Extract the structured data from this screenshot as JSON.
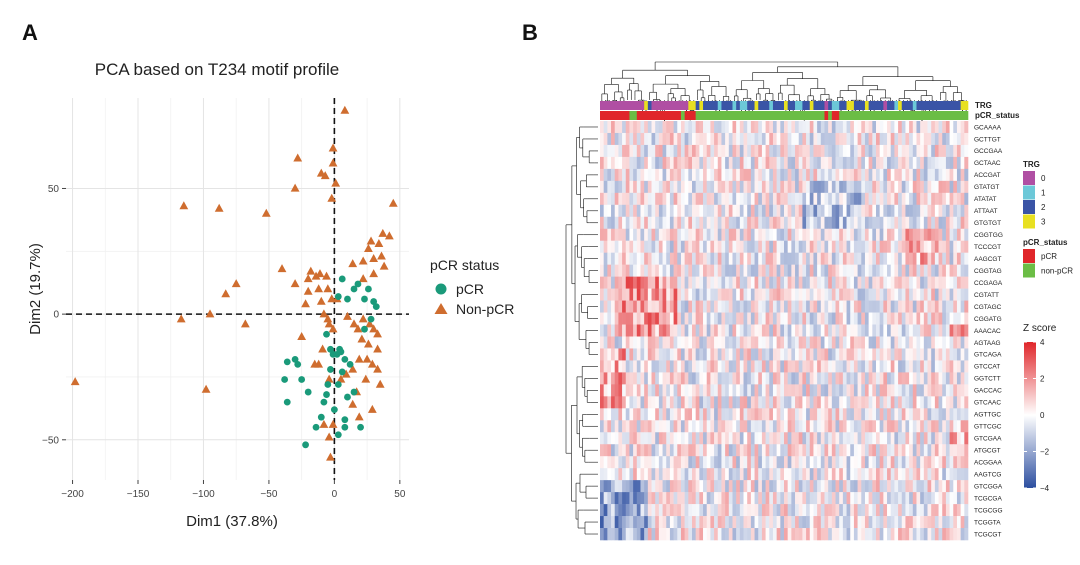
{
  "panels": {
    "a_label": "A",
    "b_label": "B"
  },
  "chart_data": [
    {
      "type": "scatter",
      "title": "PCA based on T234 motif profile",
      "xlabel": "Dim1 (37.8%)",
      "ylabel": "Dim2 (19.7%)",
      "xlim": [
        -205,
        57
      ],
      "ylim": [
        -66,
        86
      ],
      "x_ticks": [
        -200,
        -150,
        -100,
        -50,
        0,
        50
      ],
      "y_ticks": [
        -50,
        0,
        50
      ],
      "x_tick_labels": [
        "−200",
        "−150",
        "−100",
        "−50",
        "0",
        "50"
      ],
      "y_tick_labels": [
        "−50",
        "0",
        "50"
      ],
      "reference_lines": {
        "x": 0,
        "y": 0,
        "style": "dashed"
      },
      "legend": {
        "title": "pCR status",
        "position": "right"
      },
      "colors": {
        "pCR": "#1a9a7a",
        "Non-pCR": "#cf6d2f"
      },
      "series": [
        {
          "name": "pCR",
          "marker": "circle",
          "points": [
            [
              3,
              7
            ],
            [
              6,
              14
            ],
            [
              10,
              6
            ],
            [
              15,
              10
            ],
            [
              18,
              12
            ],
            [
              23,
              6
            ],
            [
              26,
              10
            ],
            [
              30,
              5
            ],
            [
              32,
              3
            ],
            [
              28,
              -2
            ],
            [
              23,
              -6
            ],
            [
              -6,
              -8
            ],
            [
              -3,
              -14
            ],
            [
              2,
              -16
            ],
            [
              5,
              -15
            ],
            [
              8,
              -18
            ],
            [
              12,
              -20
            ],
            [
              6,
              -23
            ],
            [
              3,
              -28
            ],
            [
              -3,
              -22
            ],
            [
              -5,
              -28
            ],
            [
              -6,
              -32
            ],
            [
              -20,
              -31
            ],
            [
              -25,
              -26
            ],
            [
              -30,
              -18
            ],
            [
              -28,
              -20
            ],
            [
              -36,
              -19
            ],
            [
              -38,
              -26
            ],
            [
              -36,
              -35
            ],
            [
              0,
              -38
            ],
            [
              3,
              -48
            ],
            [
              8,
              -42
            ],
            [
              15,
              -31
            ],
            [
              10,
              -33
            ],
            [
              -8,
              -35
            ],
            [
              -10,
              -41
            ],
            [
              -14,
              -45
            ],
            [
              -22,
              -52
            ],
            [
              8,
              -45
            ],
            [
              20,
              -45
            ],
            [
              -1,
              -16
            ],
            [
              4,
              -14
            ]
          ]
        },
        {
          "name": "Non-pCR",
          "marker": "triangle",
          "points": [
            [
              8,
              81
            ],
            [
              -1,
              66
            ],
            [
              -28,
              62
            ],
            [
              -1,
              60
            ],
            [
              -10,
              56
            ],
            [
              -7,
              55
            ],
            [
              1,
              52
            ],
            [
              -30,
              50
            ],
            [
              -115,
              43
            ],
            [
              -88,
              42
            ],
            [
              -52,
              40
            ],
            [
              -2,
              46
            ],
            [
              45,
              44
            ],
            [
              37,
              32
            ],
            [
              42,
              31
            ],
            [
              28,
              29
            ],
            [
              34,
              28
            ],
            [
              26,
              26
            ],
            [
              36,
              23
            ],
            [
              22,
              21
            ],
            [
              30,
              22
            ],
            [
              38,
              19
            ],
            [
              30,
              16
            ],
            [
              22,
              14
            ],
            [
              14,
              20
            ],
            [
              -40,
              18
            ],
            [
              -20,
              14
            ],
            [
              -18,
              17
            ],
            [
              -14,
              15
            ],
            [
              -11,
              16
            ],
            [
              -30,
              12
            ],
            [
              -12,
              10
            ],
            [
              -5,
              10
            ],
            [
              -6,
              15
            ],
            [
              -20,
              9
            ],
            [
              -75,
              12
            ],
            [
              -83,
              8
            ],
            [
              -95,
              0
            ],
            [
              -117,
              -2
            ],
            [
              -68,
              -4
            ],
            [
              -2,
              6
            ],
            [
              2,
              6
            ],
            [
              -10,
              5
            ],
            [
              -22,
              4
            ],
            [
              -8,
              0
            ],
            [
              -4,
              -4
            ],
            [
              -1,
              -6
            ],
            [
              10,
              -1
            ],
            [
              15,
              -4
            ],
            [
              18,
              -6
            ],
            [
              22,
              -2
            ],
            [
              27,
              -4
            ],
            [
              30,
              -6
            ],
            [
              33,
              -8
            ],
            [
              21,
              -10
            ],
            [
              26,
              -12
            ],
            [
              33,
              -14
            ],
            [
              25,
              -18
            ],
            [
              29,
              -20
            ],
            [
              33,
              -22
            ],
            [
              19,
              -18
            ],
            [
              14,
              -22
            ],
            [
              9,
              -24
            ],
            [
              5,
              -26
            ],
            [
              -4,
              -26
            ],
            [
              -12,
              -20
            ],
            [
              -9,
              -14
            ],
            [
              -25,
              -9
            ],
            [
              -5,
              -2
            ],
            [
              14,
              -36
            ],
            [
              17,
              -31
            ],
            [
              24,
              -26
            ],
            [
              -1,
              -44
            ],
            [
              -4,
              -49
            ],
            [
              -15,
              -20
            ],
            [
              -198,
              -27
            ],
            [
              -98,
              -30
            ],
            [
              -8,
              -44
            ],
            [
              -3,
              -57
            ],
            [
              35,
              -28
            ],
            [
              29,
              -38
            ],
            [
              19,
              -41
            ]
          ]
        }
      ]
    },
    {
      "type": "heatmap",
      "row_labels": [
        "GCAAAA",
        "GCTTGT",
        "GCCGAA",
        "GCTAAC",
        "ACCGAT",
        "GTATGT",
        "ATATAT",
        "ATTAAT",
        "GTGTGT",
        "CGGTGG",
        "TCCCGT",
        "AAGCGT",
        "CGGTAG",
        "CCGAGA",
        "CGTATT",
        "CGTAGC",
        "CGGATG",
        "AAACAC",
        "AGTAAG",
        "GTCAGA",
        "GTCCAT",
        "GGTCTT",
        "GACCAC",
        "GTCAAC",
        "AGTTGC",
        "GTTCGC",
        "GTCGAA",
        "ATGCGT",
        "ACGGAA",
        "AAGTCG",
        "GTCGGA",
        "TCGCGA",
        "TCGCGG",
        "TCGGTA",
        "TCGCGT"
      ],
      "annotation_titles": [
        "TRG",
        "pCR_status"
      ],
      "legend_trg": {
        "title": "TRG",
        "levels": [
          "0",
          "1",
          "2",
          "3"
        ],
        "colors": [
          "#b04fa3",
          "#6cc8d8",
          "#3a54a6",
          "#e8e021"
        ]
      },
      "legend_pcr": {
        "title": "pCR_status",
        "levels": [
          "pCR",
          "non-pCR"
        ],
        "colors": [
          "#e0262a",
          "#6bbd45"
        ]
      },
      "z_scale": {
        "title": "Z score",
        "ticks": [
          4,
          2,
          0,
          -2,
          -4
        ],
        "tick_labels": [
          "4",
          "2",
          "0",
          "−2",
          "−4"
        ],
        "min": -4,
        "max": 4,
        "low_color": "#2c4ea0",
        "mid_color": "#ffffff",
        "high_color": "#e0262a"
      },
      "n_columns": 100,
      "trg_segments": [
        [
          0,
          0,
          12
        ],
        [
          12,
          3,
          1
        ],
        [
          13,
          2,
          1
        ],
        [
          14,
          0,
          10
        ],
        [
          24,
          3,
          2
        ],
        [
          26,
          2,
          1
        ],
        [
          27,
          3,
          1
        ],
        [
          28,
          2,
          4
        ],
        [
          32,
          1,
          1
        ],
        [
          33,
          2,
          3
        ],
        [
          36,
          1,
          1
        ],
        [
          37,
          2,
          2
        ],
        [
          38,
          1,
          2
        ],
        [
          40,
          2,
          2
        ],
        [
          42,
          3,
          1
        ],
        [
          43,
          2,
          3
        ],
        [
          46,
          1,
          1
        ],
        [
          47,
          2,
          3
        ],
        [
          50,
          3,
          1
        ],
        [
          51,
          2,
          2
        ],
        [
          53,
          1,
          2
        ],
        [
          55,
          2,
          2
        ],
        [
          57,
          3,
          1
        ],
        [
          58,
          2,
          3
        ],
        [
          61,
          0,
          1
        ],
        [
          62,
          2,
          1
        ],
        [
          63,
          1,
          2
        ],
        [
          65,
          2,
          2
        ],
        [
          67,
          3,
          2
        ],
        [
          69,
          2,
          3
        ],
        [
          72,
          3,
          1
        ],
        [
          73,
          2,
          4
        ],
        [
          77,
          0,
          1
        ],
        [
          78,
          2,
          2
        ],
        [
          80,
          1,
          1
        ],
        [
          81,
          3,
          1
        ],
        [
          82,
          2,
          3
        ],
        [
          85,
          1,
          1
        ],
        [
          86,
          2,
          12
        ],
        [
          98,
          3,
          2
        ]
      ],
      "pcr_segments": [
        [
          0,
          0,
          8
        ],
        [
          8,
          1,
          2
        ],
        [
          10,
          0,
          12
        ],
        [
          22,
          1,
          1
        ],
        [
          23,
          0,
          3
        ],
        [
          26,
          1,
          35
        ],
        [
          61,
          0,
          1
        ],
        [
          62,
          1,
          1
        ],
        [
          63,
          0,
          2
        ],
        [
          65,
          1,
          35
        ]
      ]
    }
  ]
}
